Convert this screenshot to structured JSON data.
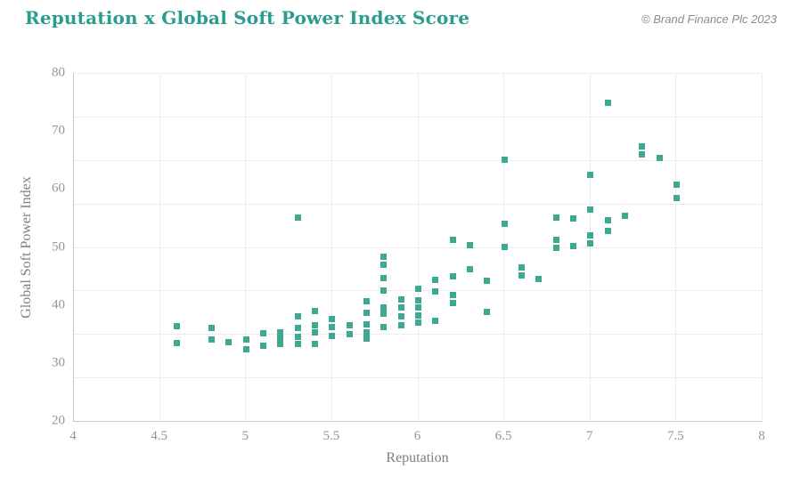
{
  "header": {
    "title": "Reputation x Global Soft Power Index Score",
    "attribution": "© Brand Finance Plc 2023"
  },
  "colors": {
    "title": "#2a9d8f",
    "marker": "#3fa893",
    "gridline": "#ececec",
    "axis_line": "#c9c9c9",
    "tick_label": "#9a948e",
    "axis_title": "#857b71",
    "attribution": "#8c8c8c",
    "background": "#ffffff"
  },
  "chart_data": {
    "type": "scatter",
    "title": "Reputation x Global Soft Power Index Score",
    "xlabel": "Reputation",
    "ylabel": "Global Soft Power Index",
    "xlim": [
      4,
      8
    ],
    "ylim": [
      20,
      80
    ],
    "x_ticks": [
      4,
      4.5,
      5,
      5.5,
      6,
      6.5,
      7,
      7.5,
      8
    ],
    "y_ticks": [
      20,
      30,
      40,
      50,
      60,
      70,
      80
    ],
    "y_gridline_divisions": 8,
    "grid": true,
    "legend": false,
    "marker": {
      "shape": "square",
      "size": 7,
      "color": "#3fa893"
    },
    "points": [
      [
        4.6,
        36.4
      ],
      [
        4.6,
        33.5
      ],
      [
        4.8,
        36.1
      ],
      [
        4.8,
        34.0
      ],
      [
        4.9,
        33.6
      ],
      [
        5.0,
        34.0
      ],
      [
        5.0,
        32.3
      ],
      [
        5.1,
        35.1
      ],
      [
        5.1,
        33.0
      ],
      [
        5.2,
        35.3
      ],
      [
        5.2,
        34.2
      ],
      [
        5.2,
        33.2
      ],
      [
        5.3,
        55.0
      ],
      [
        5.3,
        38.1
      ],
      [
        5.3,
        36.1
      ],
      [
        5.3,
        34.5
      ],
      [
        5.3,
        33.2
      ],
      [
        5.4,
        38.9
      ],
      [
        5.4,
        36.5
      ],
      [
        5.4,
        35.2
      ],
      [
        5.4,
        33.3
      ],
      [
        5.5,
        37.6
      ],
      [
        5.5,
        36.2
      ],
      [
        5.5,
        34.6
      ],
      [
        5.6,
        36.5
      ],
      [
        5.6,
        35.0
      ],
      [
        5.7,
        40.6
      ],
      [
        5.7,
        38.6
      ],
      [
        5.7,
        36.7
      ],
      [
        5.7,
        35.2
      ],
      [
        5.7,
        34.2
      ],
      [
        5.8,
        48.3
      ],
      [
        5.8,
        47.0
      ],
      [
        5.8,
        44.6
      ],
      [
        5.8,
        42.5
      ],
      [
        5.8,
        39.6
      ],
      [
        5.8,
        38.5
      ],
      [
        5.8,
        36.2
      ],
      [
        5.9,
        41.0
      ],
      [
        5.9,
        39.5
      ],
      [
        5.9,
        38.0
      ],
      [
        5.9,
        36.5
      ],
      [
        6.0,
        42.8
      ],
      [
        6.0,
        40.8
      ],
      [
        6.0,
        39.5
      ],
      [
        6.0,
        38.2
      ],
      [
        6.0,
        37.0
      ],
      [
        6.1,
        44.3
      ],
      [
        6.1,
        42.3
      ],
      [
        6.1,
        37.2
      ],
      [
        6.2,
        51.2
      ],
      [
        6.2,
        45.0
      ],
      [
        6.2,
        41.7
      ],
      [
        6.2,
        40.4
      ],
      [
        6.3,
        50.3
      ],
      [
        6.3,
        46.2
      ],
      [
        6.4,
        44.2
      ],
      [
        6.4,
        38.8
      ],
      [
        6.5,
        65.1
      ],
      [
        6.5,
        54.0
      ],
      [
        6.5,
        50.0
      ],
      [
        6.6,
        46.5
      ],
      [
        6.6,
        45.1
      ],
      [
        6.7,
        44.5
      ],
      [
        6.8,
        55.1
      ],
      [
        6.8,
        51.2
      ],
      [
        6.8,
        49.8
      ],
      [
        6.9,
        54.9
      ],
      [
        6.9,
        50.2
      ],
      [
        7.0,
        62.4
      ],
      [
        7.0,
        56.5
      ],
      [
        7.0,
        52.0
      ],
      [
        7.0,
        50.6
      ],
      [
        7.1,
        74.8
      ],
      [
        7.1,
        54.6
      ],
      [
        7.1,
        52.7
      ],
      [
        7.2,
        55.4
      ],
      [
        7.3,
        67.3
      ],
      [
        7.3,
        66.0
      ],
      [
        7.4,
        65.3
      ],
      [
        7.5,
        60.7
      ],
      [
        7.5,
        58.5
      ]
    ]
  }
}
